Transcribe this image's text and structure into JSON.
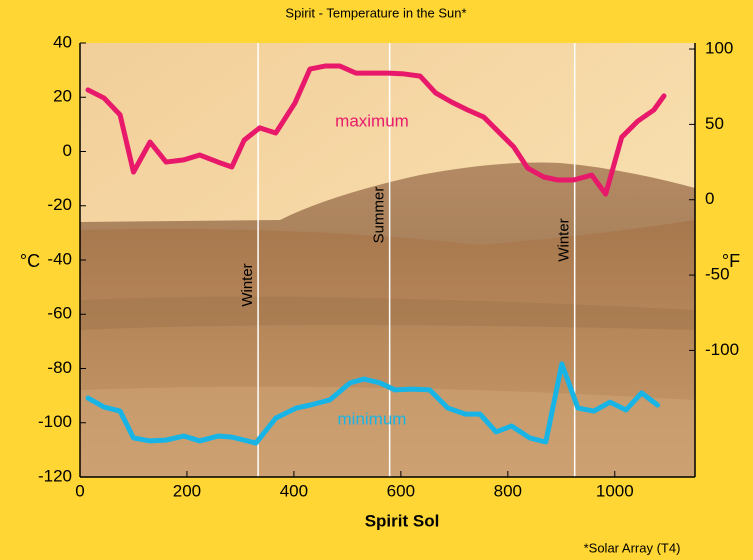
{
  "chart_data": {
    "type": "line",
    "title": "Spirit - Temperature in the Sun*",
    "x_label": "Spirit Sol",
    "y_label": "°C",
    "y2_label": "°F",
    "footnote": "*Solar Array (T4)",
    "xlim": [
      0,
      1150
    ],
    "xticks": [
      0,
      200,
      400,
      600,
      800,
      1000
    ],
    "ylim": [
      -120,
      40
    ],
    "yticks": [
      40,
      20,
      0,
      -20,
      -40,
      -60,
      -80,
      -100,
      -120
    ],
    "y2lim": [
      -184,
      104
    ],
    "y2ticks": [
      100,
      50,
      0,
      -50,
      -100
    ],
    "annotations": [
      {
        "text": "Winter",
        "x": 333
      },
      {
        "text": "Summer",
        "x": 579
      },
      {
        "text": "Winter",
        "x": 925
      }
    ],
    "series": [
      {
        "name": "maximum",
        "color": "#e8196b",
        "x": [
          15,
          45,
          75,
          100,
          131,
          161,
          194,
          224,
          258,
          284,
          307,
          336,
          366,
          402,
          430,
          458,
          486,
          516,
          546,
          576,
          606,
          636,
          665,
          695,
          725,
          755,
          785,
          811,
          837,
          867,
          893,
          923,
          957,
          983,
          1013,
          1043,
          1073,
          1092
        ],
        "values": [
          22.7,
          19.7,
          13.5,
          -7.6,
          3.5,
          -3.9,
          -3.1,
          -1.3,
          -3.9,
          -5.7,
          4.2,
          8.7,
          6.8,
          17.9,
          30.4,
          31.5,
          31.5,
          28.9,
          28.9,
          28.9,
          28.6,
          27.8,
          21.6,
          18.2,
          15.3,
          12.7,
          6.8,
          1.7,
          -6.1,
          -9.4,
          -10.5,
          -10.5,
          -8.7,
          -15.7,
          5.3,
          11.2,
          15.3,
          20.5
        ]
      },
      {
        "name": "minimum",
        "color": "#19b4e6",
        "x": [
          15,
          45,
          75,
          100,
          131,
          161,
          194,
          224,
          258,
          284,
          329,
          366,
          404,
          430,
          467,
          505,
          531,
          561,
          589,
          621,
          654,
          688,
          721,
          748,
          778,
          807,
          841,
          871,
          901,
          931,
          961,
          991,
          1021,
          1050,
          1080
        ],
        "values": [
          -90.9,
          -94.2,
          -95.7,
          -105.6,
          -106.7,
          -106.4,
          -104.9,
          -106.7,
          -104.9,
          -105.3,
          -107.5,
          -98.3,
          -94.6,
          -93.5,
          -91.6,
          -85.3,
          -83.9,
          -85.3,
          -87.9,
          -87.6,
          -87.9,
          -94.6,
          -96.8,
          -96.8,
          -103.4,
          -101.2,
          -105.6,
          -107.1,
          -78.3,
          -94.6,
          -95.7,
          -92.4,
          -95.3,
          -89.0,
          -93.5
        ]
      }
    ]
  }
}
